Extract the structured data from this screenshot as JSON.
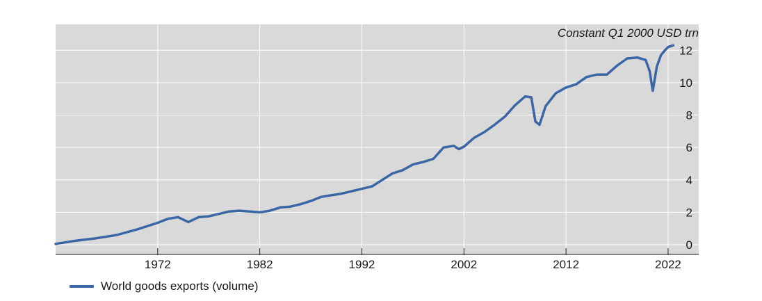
{
  "chart_data": {
    "type": "line",
    "unit_label": "Constant Q1 2000 USD trn",
    "x_ticks": [
      1972,
      1982,
      1992,
      2002,
      2012,
      2022
    ],
    "y_ticks": [
      0,
      2,
      4,
      6,
      8,
      10,
      12
    ],
    "xlim": [
      1962,
      2025
    ],
    "ylim": [
      -0.6,
      13.6
    ],
    "grid": true,
    "legend_position": "bottom-left",
    "colors": {
      "series": "#3a66a6",
      "plot_background": "#d9d9d9",
      "grid": "#ffffff"
    },
    "series": [
      {
        "name": "World goods exports (volume)",
        "x": [
          1962,
          1964,
          1966,
          1968,
          1970,
          1972,
          1973,
          1974,
          1975,
          1976,
          1977,
          1978,
          1979,
          1980,
          1981,
          1982,
          1983,
          1984,
          1985,
          1986,
          1987,
          1988,
          1989,
          1990,
          1991,
          1992,
          1993,
          1994,
          1995,
          1996,
          1997,
          1998,
          1999,
          2000,
          2001,
          2001.5,
          2002,
          2003,
          2004,
          2005,
          2006,
          2007,
          2008,
          2008.6,
          2009,
          2009.4,
          2010,
          2011,
          2012,
          2013,
          2014,
          2015,
          2016,
          2017,
          2018,
          2019,
          2019.8,
          2020.2,
          2020.5,
          2020.9,
          2021.3,
          2021.7,
          2022,
          2022.5
        ],
        "values": [
          0.05,
          0.25,
          0.4,
          0.6,
          0.95,
          1.35,
          1.6,
          1.7,
          1.4,
          1.7,
          1.75,
          1.9,
          2.05,
          2.1,
          2.05,
          2.0,
          2.1,
          2.3,
          2.35,
          2.5,
          2.7,
          2.95,
          3.05,
          3.15,
          3.3,
          3.45,
          3.6,
          4.0,
          4.4,
          4.6,
          4.95,
          5.1,
          5.3,
          6.0,
          6.1,
          5.9,
          6.05,
          6.6,
          6.95,
          7.4,
          7.9,
          8.6,
          9.15,
          9.1,
          7.6,
          7.4,
          8.55,
          9.35,
          9.7,
          9.9,
          10.35,
          10.5,
          10.5,
          11.05,
          11.5,
          11.55,
          11.4,
          10.7,
          9.5,
          11.0,
          11.7,
          12.0,
          12.2,
          12.3
        ]
      }
    ]
  }
}
